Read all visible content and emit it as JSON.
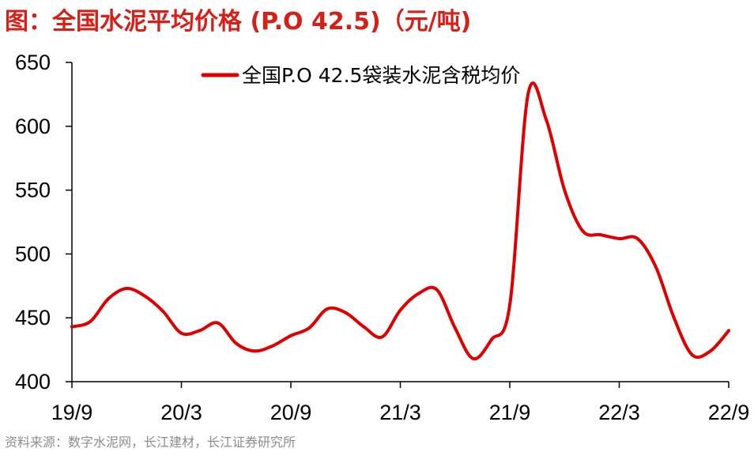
{
  "title": "图：全国水泥平均价格 (P.O 42.5)（元/吨)",
  "source": "资料来源：数字水泥网，长江建材，长江证券研究所",
  "chart_data": {
    "type": "line",
    "title": "图：全国水泥平均价格 (P.O 42.5)（元/吨)",
    "xlabel": "",
    "ylabel": "",
    "ylim": [
      400,
      650
    ],
    "yticks": [
      400,
      450,
      500,
      550,
      600,
      650
    ],
    "x_tick_labels": [
      "19/9",
      "20/3",
      "20/9",
      "21/3",
      "21/9",
      "22/3",
      "22/9"
    ],
    "x_range": [
      "2019-09",
      "2022-09"
    ],
    "grid": false,
    "legend_position": "top-center",
    "series": [
      {
        "name": "全国P.O 42.5袋装水泥含税均价",
        "color": "#e00000",
        "x": [
          "2019-09",
          "2019-10",
          "2019-11",
          "2019-12",
          "2020-01",
          "2020-02",
          "2020-03",
          "2020-04",
          "2020-05",
          "2020-06",
          "2020-07",
          "2020-08",
          "2020-09",
          "2020-10",
          "2020-11",
          "2020-12",
          "2021-01",
          "2021-02",
          "2021-03",
          "2021-04",
          "2021-05",
          "2021-06",
          "2021-07",
          "2021-08",
          "2021-09",
          "2021-10",
          "2021-11",
          "2021-12",
          "2022-01",
          "2022-02",
          "2022-03",
          "2022-04",
          "2022-05",
          "2022-06",
          "2022-07",
          "2022-08",
          "2022-09"
        ],
        "values": [
          443,
          447,
          465,
          473,
          467,
          455,
          438,
          440,
          446,
          430,
          424,
          428,
          436,
          442,
          457,
          454,
          443,
          435,
          456,
          469,
          472,
          442,
          418,
          433,
          460,
          625,
          605,
          550,
          518,
          515,
          512,
          512,
          490,
          450,
          421,
          424,
          440
        ]
      }
    ]
  }
}
